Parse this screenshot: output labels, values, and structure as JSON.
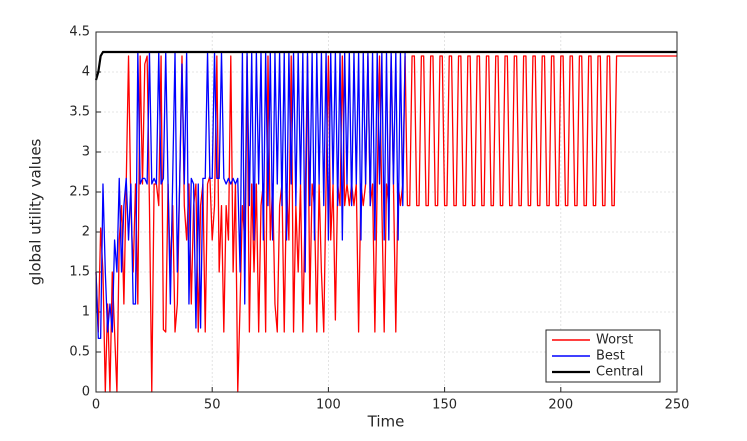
{
  "chart_data": {
    "type": "line",
    "xlabel": "Time",
    "ylabel": "global utility values",
    "xlim": [
      0,
      250
    ],
    "ylim": [
      0,
      4.5
    ],
    "xticks": [
      0,
      50,
      100,
      150,
      200,
      250
    ],
    "yticks": [
      0,
      0.5,
      1,
      1.5,
      2,
      2.5,
      3,
      3.5,
      4,
      4.5
    ],
    "grid": true,
    "legend": "lower-right",
    "series": [
      {
        "name": "Worst",
        "color": "#ff0000",
        "x": [
          0,
          1,
          2,
          3,
          4,
          5,
          6,
          7,
          8,
          9,
          10,
          11,
          12,
          13,
          14,
          15,
          16,
          17,
          18,
          19,
          20,
          21,
          22,
          23,
          24,
          25,
          26,
          27,
          28,
          29,
          30,
          31,
          32,
          33,
          34,
          35,
          36,
          37,
          38,
          39,
          40,
          41,
          42,
          43,
          44,
          45,
          46,
          47,
          48,
          49,
          50,
          51,
          52,
          53,
          54,
          55,
          56,
          57,
          58,
          59,
          60,
          61,
          62,
          63,
          64,
          65,
          66,
          67,
          68,
          69,
          70,
          71,
          72,
          73,
          74,
          75,
          76,
          77,
          78,
          79,
          80,
          81,
          82,
          83,
          84,
          85,
          86,
          87,
          88,
          89,
          90,
          91,
          92,
          93,
          94,
          95,
          96,
          97,
          98,
          99,
          100,
          101,
          102,
          103,
          104,
          105,
          106,
          107,
          108,
          109,
          110,
          111,
          112,
          113,
          114,
          115,
          116,
          117,
          118,
          119,
          120,
          121,
          122,
          123,
          124,
          125,
          126,
          127,
          128,
          129,
          130,
          131,
          132,
          133,
          134,
          135,
          136,
          137,
          138,
          139,
          140,
          141,
          142,
          143,
          144,
          145,
          146,
          147,
          148,
          149,
          150,
          151,
          152,
          153,
          154,
          155,
          156,
          157,
          158,
          159,
          160,
          161,
          162,
          163,
          164,
          165,
          166,
          167,
          168,
          169,
          170,
          171,
          172,
          173,
          174,
          175,
          176,
          177,
          178,
          179,
          180,
          181,
          182,
          183,
          184,
          185,
          186,
          187,
          188,
          189,
          190,
          191,
          192,
          193,
          194,
          195,
          196,
          197,
          198,
          199,
          200,
          201,
          202,
          203,
          204,
          205,
          206,
          207,
          208,
          209,
          210,
          211,
          212,
          213,
          214,
          215,
          216,
          217,
          218,
          219,
          220,
          221,
          222,
          223,
          224,
          250
        ],
        "values": [
          1.5,
          0.75,
          2.05,
          1.5,
          0,
          1.1,
          0,
          1.5,
          0.75,
          0,
          1.9,
          2.33,
          1.1,
          2.6,
          4.2,
          2.33,
          1.5,
          2.6,
          1.1,
          4.2,
          2.6,
          4.1,
          4.2,
          2.33,
          0,
          2.6,
          2.6,
          2.33,
          4.2,
          0.78,
          0.75,
          2.6,
          1.5,
          2.33,
          0.75,
          1.1,
          2.6,
          4.2,
          2.33,
          1.9,
          2.6,
          1.1,
          2.33,
          2.6,
          0.75,
          2.33,
          2.6,
          0.75,
          2.6,
          2.7,
          1.9,
          2.33,
          4.2,
          1.5,
          2.33,
          0.75,
          2.33,
          1.9,
          4.2,
          1.5,
          2.6,
          0,
          1.1,
          2.33,
          1.9,
          4.2,
          0.75,
          2.6,
          1.5,
          2.6,
          0.75,
          2.33,
          2.6,
          0.75,
          4.2,
          1.9,
          2.6,
          1.1,
          0.75,
          2.33,
          2.6,
          0.75,
          2.6,
          1.9,
          4.2,
          0.75,
          2.33,
          1.5,
          2.6,
          0.75,
          2.33,
          4.2,
          1.1,
          2.6,
          2.33,
          0.75,
          2.6,
          1.5,
          0.75,
          2.6,
          4.2,
          1.9,
          2.6,
          0.9,
          2.6,
          2.33,
          4.2,
          2.33,
          2.6,
          2.33,
          2.6,
          2.33,
          2.6,
          0.75,
          2.6,
          2.33,
          2.6,
          4.2,
          2.33,
          2.6,
          0.75,
          2.6,
          4.2,
          2.33,
          0.75,
          2.6,
          2.33,
          4.2,
          2.6,
          0.75,
          2.6,
          2.33,
          2.6,
          4.2,
          2.33,
          2.33,
          4.2,
          4.2,
          2.33,
          2.33,
          4.2,
          4.2,
          2.33,
          2.33,
          4.2,
          4.2,
          2.33,
          2.33,
          4.2,
          4.2,
          2.33,
          2.33,
          4.2,
          4.2,
          2.33,
          2.33,
          4.2,
          4.2,
          2.33,
          2.33,
          4.2,
          4.2,
          2.33,
          2.33,
          4.2,
          4.2,
          2.33,
          2.33,
          4.2,
          4.2,
          2.33,
          2.33,
          4.2,
          4.2,
          2.33,
          2.33,
          4.2,
          4.2,
          2.33,
          2.33,
          4.2,
          4.2,
          2.33,
          2.33,
          4.2,
          4.2,
          2.33,
          2.33,
          4.2,
          4.2,
          2.33,
          2.33,
          4.2,
          4.2,
          2.33,
          2.33,
          4.2,
          4.2,
          2.33,
          2.33,
          4.2,
          4.2,
          2.33,
          2.33,
          4.2,
          4.2,
          2.33,
          2.33,
          4.2,
          4.2,
          2.33,
          2.33,
          4.2,
          4.2,
          2.33,
          2.33,
          4.2,
          4.2,
          2.33,
          2.33,
          4.2,
          4.2,
          2.33,
          2.33,
          4.2,
          4.2
        ]
      },
      {
        "name": "Best",
        "color": "#0000ff",
        "x": [
          0,
          1,
          2,
          3,
          4,
          5,
          6,
          7,
          8,
          9,
          10,
          11,
          12,
          13,
          14,
          15,
          16,
          17,
          18,
          19,
          20,
          21,
          22,
          23,
          24,
          25,
          26,
          27,
          28,
          29,
          30,
          31,
          32,
          33,
          34,
          35,
          36,
          37,
          38,
          39,
          40,
          41,
          42,
          43,
          44,
          45,
          46,
          47,
          48,
          49,
          50,
          51,
          52,
          53,
          54,
          55,
          56,
          57,
          58,
          59,
          60,
          61,
          62,
          63,
          64,
          65,
          66,
          67,
          68,
          69,
          70,
          71,
          72,
          73,
          74,
          75,
          76,
          77,
          78,
          79,
          80,
          81,
          82,
          83,
          84,
          85,
          86,
          87,
          88,
          89,
          90,
          91,
          92,
          93,
          94,
          95,
          96,
          97,
          98,
          99,
          100,
          101,
          102,
          103,
          104,
          105,
          106,
          107,
          108,
          109,
          110,
          111,
          112,
          113,
          114,
          115,
          116,
          117,
          118,
          119,
          120,
          121,
          122,
          123,
          124,
          125,
          126,
          127,
          128,
          129,
          130,
          131,
          132,
          133
        ],
        "values": [
          1.5,
          0.67,
          0.67,
          2.6,
          1.5,
          0.75,
          1.1,
          0.75,
          1.9,
          1.5,
          2.67,
          1.5,
          2.33,
          2.67,
          1.9,
          2.6,
          1.1,
          1.1,
          4.25,
          2.6,
          2.67,
          2.67,
          2.6,
          4.25,
          2.6,
          2.67,
          2.6,
          4.25,
          2.6,
          2.67,
          4.25,
          2.6,
          1.1,
          2.67,
          4.25,
          1.5,
          2.6,
          4.1,
          2.6,
          4.25,
          1.1,
          2.67,
          2.6,
          0.8,
          2.6,
          0.8,
          2.67,
          2.67,
          4.25,
          2.67,
          2.67,
          4.25,
          2.67,
          2.67,
          4.25,
          2.67,
          2.6,
          2.67,
          2.6,
          2.67,
          2.6,
          2.67,
          1.5,
          4.25,
          1.1,
          4.25,
          2.33,
          4.25,
          1.9,
          4.25,
          2.6,
          4.25,
          1.9,
          4.25,
          2.33,
          4.25,
          1.9,
          4.25,
          2.6,
          4.25,
          2.33,
          4.25,
          1.9,
          4.25,
          2.6,
          4.25,
          2.33,
          4.25,
          2.6,
          4.25,
          1.5,
          4.25,
          2.33,
          4.25,
          1.9,
          4.25,
          2.6,
          4.25,
          2.33,
          4.25,
          1.9,
          4.25,
          2.6,
          4.25,
          2.33,
          4.25,
          1.9,
          4.25,
          2.6,
          4.25,
          2.33,
          4.25,
          2.6,
          4.25,
          1.9,
          4.25,
          2.6,
          4.25,
          2.33,
          4.25,
          1.9,
          4.25,
          2.6,
          4.25,
          1.9,
          4.25,
          1.9,
          4.25,
          2.6,
          4.25,
          1.9,
          4.25,
          2.33,
          4.25
        ]
      },
      {
        "name": "Central",
        "color": "#000000",
        "x": [
          0,
          1,
          2,
          3,
          250
        ],
        "values": [
          3.9,
          4.0,
          4.2,
          4.25,
          4.25
        ]
      }
    ]
  }
}
